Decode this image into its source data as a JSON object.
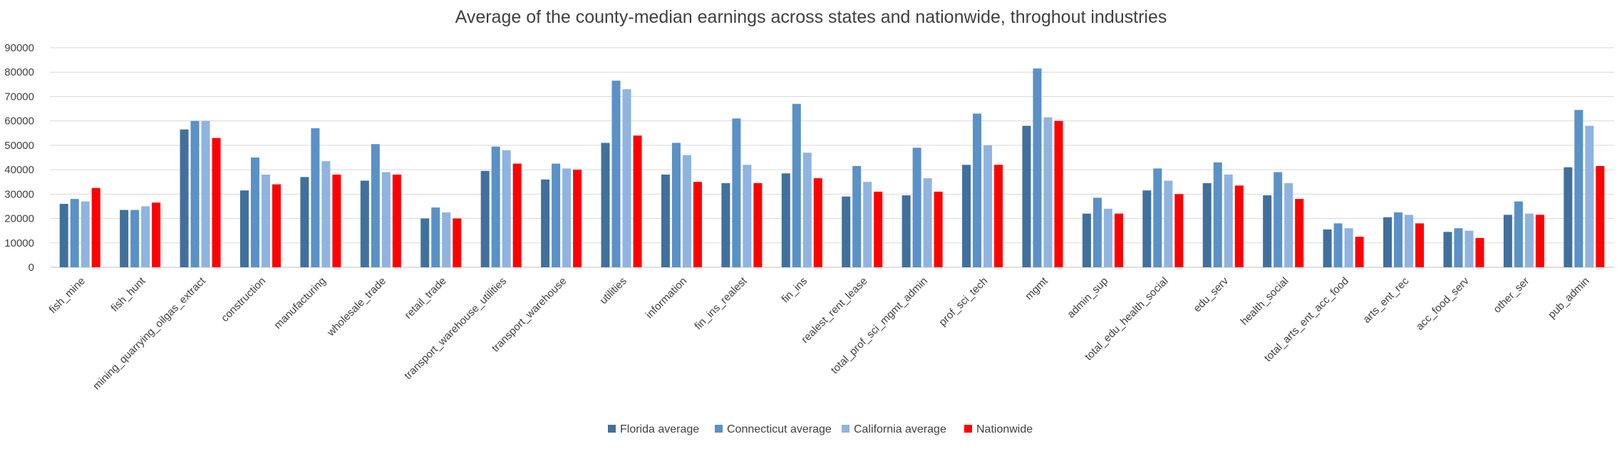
{
  "chart_data": {
    "type": "bar",
    "title": "Average of the county-median earnings across states and nationwide, throghout industries",
    "xlabel": "",
    "ylabel": "",
    "ylim": [
      0,
      90000
    ],
    "yticks": [
      0,
      10000,
      20000,
      30000,
      40000,
      50000,
      60000,
      70000,
      80000,
      90000
    ],
    "grid": true,
    "legend_position": "bottom",
    "categories": [
      "fish_mine",
      "fish_hunt",
      "mining_quarrying_oilgas_extract",
      "construction",
      "manufacturing",
      "wholesale_trade",
      "retail_trade",
      "transport_warehouse_utilities",
      "transport_warehouse",
      "utilities",
      "information",
      "fin_ins_realest",
      "fin_ins",
      "realest_rent_lease",
      "total_prof_sci_mgmt_admin",
      "prof_sci_tech",
      "mgmt",
      "admin_sup",
      "total_edu_health_social",
      "edu_serv",
      "health_social",
      "total_arts_ent_acc_food",
      "arts_ent_rec",
      "acc_food_serv",
      "other_ser",
      "pub_admin"
    ],
    "series": [
      {
        "name": "Florida average",
        "color": "#41709d",
        "values": [
          26000,
          23500,
          56500,
          31500,
          37000,
          35500,
          20000,
          39500,
          36000,
          51000,
          38000,
          34500,
          38500,
          29000,
          29500,
          42000,
          58000,
          22000,
          31500,
          34500,
          29500,
          15500,
          20500,
          14500,
          21500,
          41000
        ]
      },
      {
        "name": "Connecticut average",
        "color": "#5a91c6",
        "values": [
          28000,
          23500,
          60000,
          45000,
          57000,
          50500,
          24500,
          49500,
          42500,
          76500,
          51000,
          61000,
          67000,
          41500,
          49000,
          63000,
          81500,
          28500,
          40500,
          43000,
          39000,
          18000,
          22500,
          16000,
          27000,
          64500
        ]
      },
      {
        "name": "California average",
        "color": "#8fb4df",
        "values": [
          27000,
          25000,
          60000,
          38000,
          43500,
          39000,
          22500,
          48000,
          40500,
          73000,
          46000,
          42000,
          47000,
          35000,
          36500,
          50000,
          61500,
          24000,
          35500,
          38000,
          34500,
          16000,
          21500,
          15000,
          22000,
          58000
        ]
      },
      {
        "name": "Nationwide",
        "color": "#ff0000",
        "values": [
          32500,
          26500,
          53000,
          34000,
          38000,
          38000,
          20000,
          42500,
          40000,
          54000,
          35000,
          34500,
          36500,
          31000,
          31000,
          42000,
          60000,
          22000,
          30000,
          33500,
          28000,
          12500,
          18000,
          12000,
          21500,
          41500
        ]
      }
    ]
  }
}
